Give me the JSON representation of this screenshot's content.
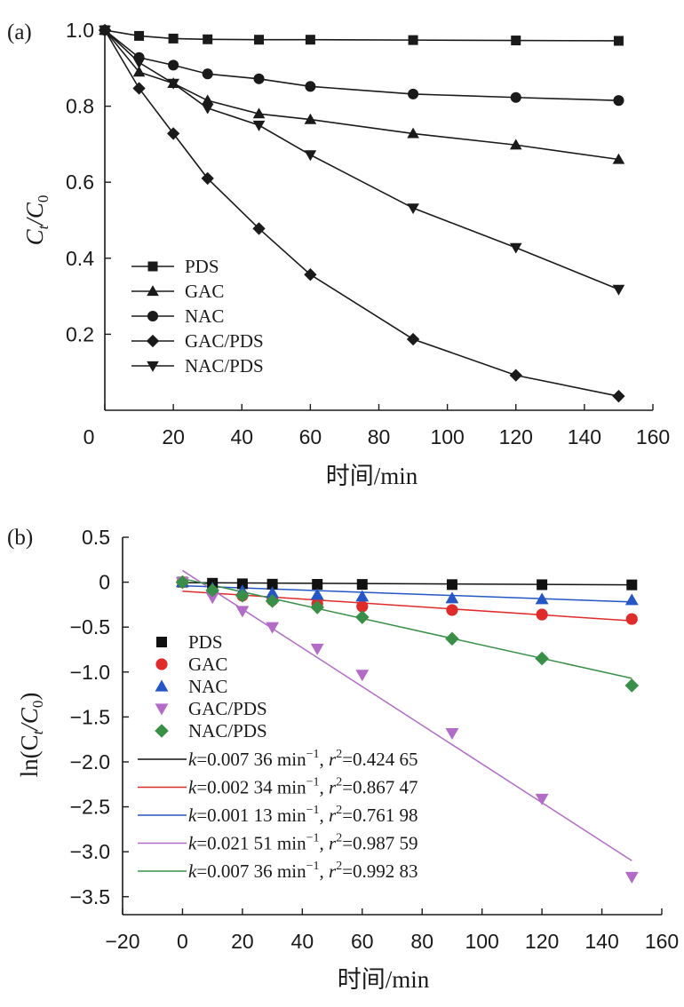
{
  "chart_data": [
    {
      "panel_label": "(a)",
      "type": "line",
      "xlabel": "时间/min",
      "ylabel_main": "C",
      "ylabel_sub1": "t",
      "ylabel_mid": "/C",
      "ylabel_sub2": "0",
      "xlim": [
        0,
        160
      ],
      "ylim": [
        0,
        1.0
      ],
      "xticks": [
        0,
        20,
        40,
        60,
        80,
        100,
        120,
        140,
        160
      ],
      "yticks": [
        0.2,
        0.4,
        0.6,
        0.8,
        1.0
      ],
      "ytick_labels": [
        "0.2",
        "0.4",
        "0.6",
        "0.8",
        "1.0"
      ],
      "legend_position": "lower-left",
      "series": [
        {
          "name": "PDS",
          "marker": "square",
          "color": "#1a1a1a",
          "x": [
            0,
            10,
            20,
            30,
            45,
            60,
            90,
            120,
            150
          ],
          "y": [
            1.0,
            0.985,
            0.978,
            0.976,
            0.975,
            0.975,
            0.974,
            0.973,
            0.972
          ]
        },
        {
          "name": "GAC",
          "marker": "triangle-up",
          "color": "#1a1a1a",
          "x": [
            0,
            10,
            20,
            30,
            45,
            60,
            90,
            120,
            150
          ],
          "y": [
            1.0,
            0.89,
            0.86,
            0.815,
            0.78,
            0.765,
            0.728,
            0.698,
            0.66
          ]
        },
        {
          "name": "NAC",
          "marker": "circle",
          "color": "#1a1a1a",
          "x": [
            0,
            10,
            20,
            30,
            45,
            60,
            90,
            120,
            150
          ],
          "y": [
            1.0,
            0.928,
            0.908,
            0.885,
            0.872,
            0.852,
            0.832,
            0.823,
            0.815
          ]
        },
        {
          "name": "GAC/PDS",
          "marker": "diamond",
          "color": "#1a1a1a",
          "x": [
            0,
            10,
            20,
            30,
            45,
            60,
            90,
            120,
            150
          ],
          "y": [
            1.0,
            0.847,
            0.728,
            0.61,
            0.478,
            0.357,
            0.187,
            0.092,
            0.037
          ]
        },
        {
          "name": "NAC/PDS",
          "marker": "triangle-down",
          "color": "#1a1a1a",
          "x": [
            0,
            10,
            20,
            30,
            45,
            60,
            90,
            120,
            150
          ],
          "y": [
            1.0,
            0.915,
            0.86,
            0.795,
            0.75,
            0.672,
            0.532,
            0.428,
            0.318
          ]
        }
      ]
    },
    {
      "panel_label": "(b)",
      "type": "scatter",
      "xlabel": "时间/min",
      "ylabel_main": "ln(C",
      "ylabel_sub1": "t",
      "ylabel_mid": "/C",
      "ylabel_sub2": "0",
      "ylabel_end": ")",
      "xlim": [
        -20,
        160
      ],
      "ylim": [
        -3.7,
        0.5
      ],
      "xticks": [
        -20,
        0,
        20,
        40,
        60,
        80,
        100,
        120,
        140,
        160
      ],
      "xtick_labels": [
        "−20",
        "0",
        "20",
        "40",
        "60",
        "80",
        "100",
        "120",
        "140",
        "160"
      ],
      "yticks": [
        0.5,
        0,
        -0.5,
        -1.0,
        -1.5,
        -2.0,
        -2.5,
        -3.0,
        -3.5
      ],
      "ytick_labels": [
        "0.5",
        "0",
        "−0.5",
        "−1.0",
        "−1.5",
        "−2.0",
        "−2.5",
        "−3.0",
        "−3.5"
      ],
      "legend_position": "lower-left",
      "series": [
        {
          "name": "PDS",
          "marker": "square",
          "color": "#111111",
          "x": [
            0,
            10,
            20,
            30,
            45,
            60,
            90,
            120,
            150
          ],
          "y": [
            0,
            -0.012,
            -0.018,
            -0.022,
            -0.024,
            -0.025,
            -0.027,
            -0.028,
            -0.03
          ]
        },
        {
          "name": "GAC",
          "marker": "circle",
          "color": "#e02b2b",
          "x": [
            0,
            10,
            20,
            30,
            45,
            60,
            90,
            120,
            150
          ],
          "y": [
            0,
            -0.11,
            -0.15,
            -0.2,
            -0.24,
            -0.27,
            -0.31,
            -0.36,
            -0.41
          ]
        },
        {
          "name": "NAC",
          "marker": "triangle-up",
          "color": "#2457c5",
          "x": [
            0,
            10,
            20,
            30,
            45,
            60,
            90,
            120,
            150
          ],
          "y": [
            0,
            -0.07,
            -0.1,
            -0.12,
            -0.14,
            -0.16,
            -0.18,
            -0.19,
            -0.2
          ]
        },
        {
          "name": "GAC/PDS",
          "marker": "triangle-down",
          "color": "#b26cc8",
          "x": [
            0,
            10,
            20,
            30,
            45,
            60,
            90,
            120,
            150
          ],
          "y": [
            0,
            -0.17,
            -0.32,
            -0.5,
            -0.74,
            -1.03,
            -1.68,
            -2.41,
            -3.28
          ]
        },
        {
          "name": "NAC/PDS",
          "marker": "diamond",
          "color": "#3a8f48",
          "x": [
            0,
            10,
            20,
            30,
            45,
            60,
            90,
            120,
            150
          ],
          "y": [
            0,
            -0.09,
            -0.15,
            -0.21,
            -0.28,
            -0.39,
            -0.63,
            -0.85,
            -1.15
          ]
        }
      ],
      "fits": [
        {
          "color": "#111111",
          "x": [
            0,
            150
          ],
          "y": [
            -0.005,
            -0.03
          ],
          "k": "=0.007 36 min",
          "r2": "=0.424 65"
        },
        {
          "color": "#e02b2b",
          "x": [
            0,
            150
          ],
          "y": [
            -0.1,
            -0.43
          ],
          "k": "=0.002 34 min",
          "r2": "=0.867 47"
        },
        {
          "color": "#2457c5",
          "x": [
            0,
            150
          ],
          "y": [
            -0.04,
            -0.22
          ],
          "k": "=0.001 13 min",
          "r2": "=0.761 98"
        },
        {
          "color": "#b26cc8",
          "x": [
            0,
            150
          ],
          "y": [
            0.13,
            -3.1
          ],
          "k": "=0.021 51 min",
          "r2": "=0.987 59"
        },
        {
          "color": "#3a8f48",
          "x": [
            0,
            150
          ],
          "y": [
            0.04,
            -1.07
          ],
          "k": "=0.007 36 min",
          "r2": "=0.992 83"
        }
      ]
    }
  ]
}
